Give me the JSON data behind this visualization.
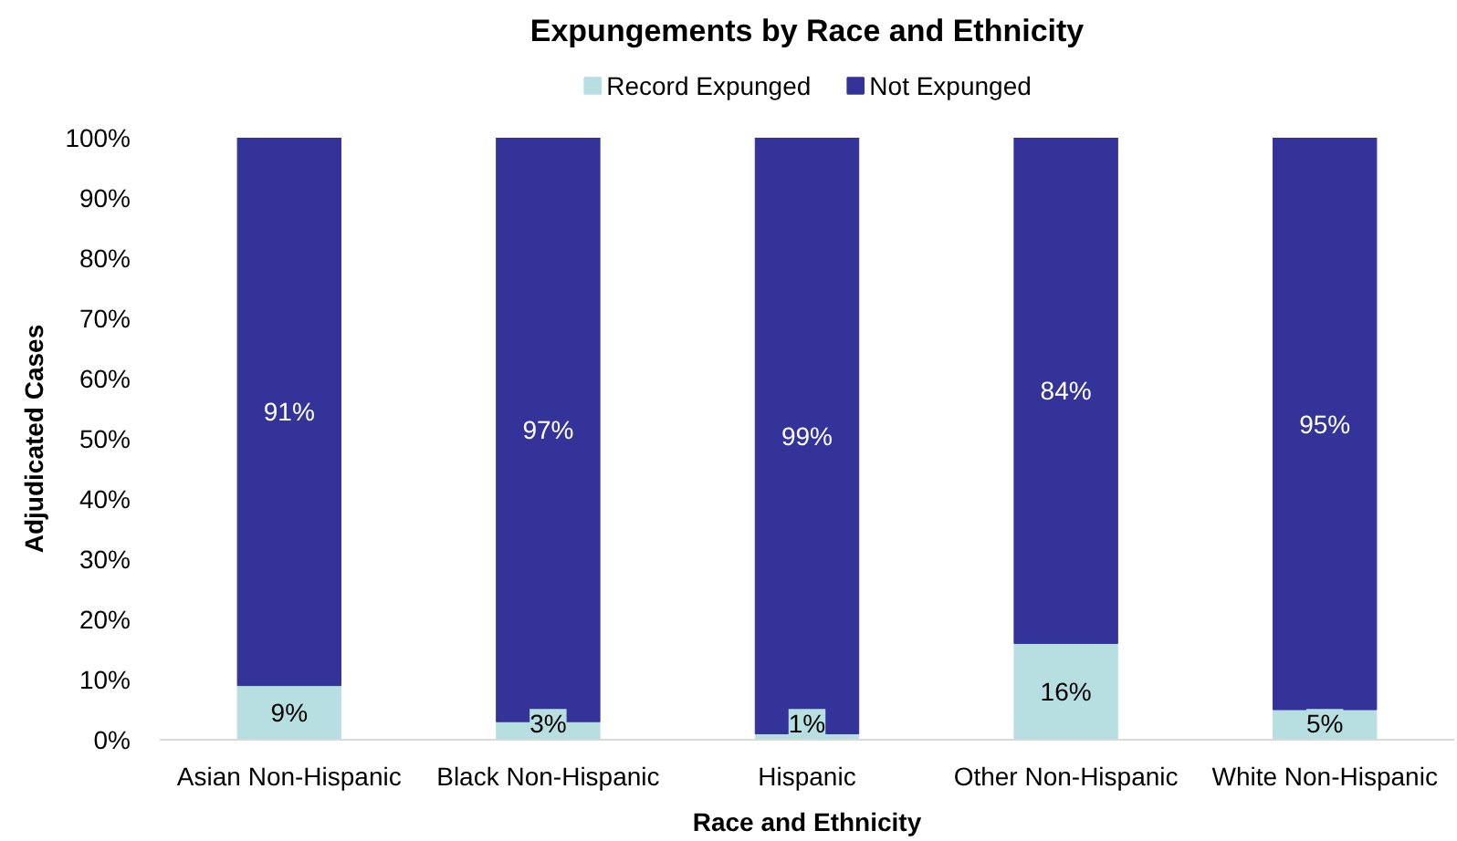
{
  "chart_data": {
    "type": "bar",
    "title": "Expungements by Race and Ethnicity",
    "xlabel": "Race and Ethnicity",
    "ylabel": "Adjudicated Cases",
    "categories": [
      "Asian Non-Hispanic",
      "Black Non-Hispanic",
      "Hispanic",
      "Other Non-Hispanic",
      "White Non-Hispanic"
    ],
    "stacked": true,
    "series": [
      {
        "name": "Record Expunged",
        "color": "#b7dfe2",
        "values": [
          9,
          3,
          1,
          16,
          5
        ],
        "value_labels": [
          "9%",
          "3%",
          "1%",
          "16%",
          "5%"
        ]
      },
      {
        "name": "Not Expunged",
        "color": "#333399",
        "values": [
          91,
          97,
          99,
          84,
          95
        ],
        "value_labels": [
          "91%",
          "97%",
          "99%",
          "84%",
          "95%"
        ]
      }
    ],
    "ylim": [
      0,
      100
    ],
    "yticks": [
      {
        "value": 0,
        "label": "0%"
      },
      {
        "value": 10,
        "label": "10%"
      },
      {
        "value": 20,
        "label": "20%"
      },
      {
        "value": 30,
        "label": "30%"
      },
      {
        "value": 40,
        "label": "40%"
      },
      {
        "value": 50,
        "label": "50%"
      },
      {
        "value": 60,
        "label": "60%"
      },
      {
        "value": 70,
        "label": "70%"
      },
      {
        "value": 80,
        "label": "80%"
      },
      {
        "value": 90,
        "label": "90%"
      },
      {
        "value": 100,
        "label": "100%"
      }
    ],
    "grid": false,
    "legend": "top"
  }
}
